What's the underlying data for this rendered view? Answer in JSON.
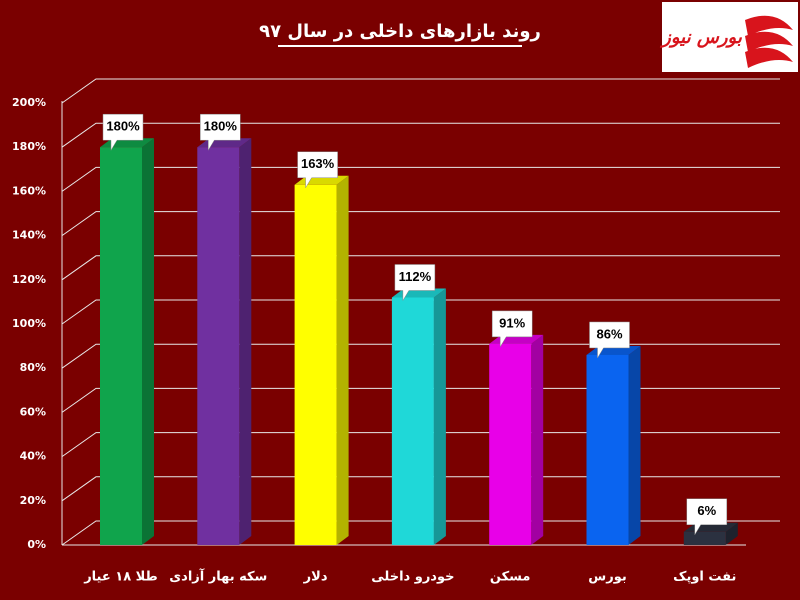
{
  "chart_data": {
    "type": "bar3d",
    "title": "روند بازارهای داخلی در سال ۹۷",
    "logo": "بورس نیوز",
    "categories": [
      "طلا ۱۸ عیار",
      "سکه بهار آزادی",
      "دلار",
      "خودرو داخلی",
      "مسکن",
      "بورس",
      "نفت اوپک"
    ],
    "values": [
      180,
      180,
      163,
      112,
      91,
      86,
      6
    ],
    "value_labels": [
      "180%",
      "180%",
      "163%",
      "112%",
      "91%",
      "86%",
      "6%"
    ],
    "colors": [
      "#10a44c",
      "#7030a0",
      "#ffff00",
      "#1fd8d8",
      "#e800e8",
      "#0a64f0",
      "#2b3140"
    ],
    "ylim": [
      0,
      200
    ],
    "yticks": [
      {
        "value": 0,
        "label": "0%"
      },
      {
        "value": 20,
        "label": "20%"
      },
      {
        "value": 40,
        "label": "40%"
      },
      {
        "value": 60,
        "label": "60%"
      },
      {
        "value": 80,
        "label": "80%"
      },
      {
        "value": 100,
        "label": "100%"
      },
      {
        "value": 120,
        "label": "120%"
      },
      {
        "value": 140,
        "label": "140%"
      },
      {
        "value": 160,
        "label": "160%"
      },
      {
        "value": 180,
        "label": "180%"
      },
      {
        "value": 200,
        "label": "200%"
      }
    ],
    "grid": true
  }
}
